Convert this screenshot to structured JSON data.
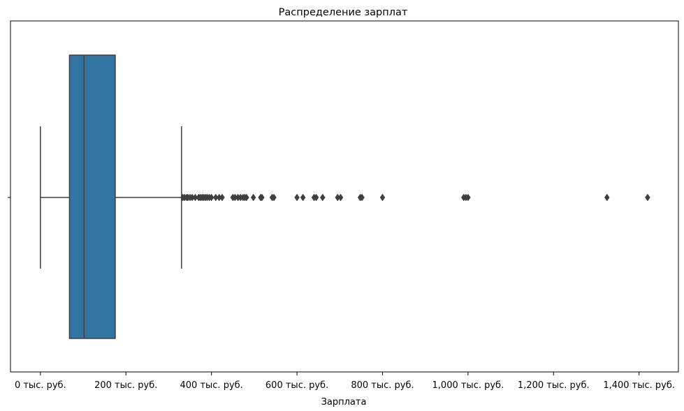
{
  "chart_data": {
    "type": "box",
    "orientation": "horizontal",
    "title": "Распределение зарплат",
    "xlabel": "Зарплата",
    "ylabel": "",
    "xlim": [
      -70,
      1492
    ],
    "xticks": [
      0,
      200,
      400,
      600,
      800,
      1000,
      1200,
      1400
    ],
    "xtick_labels": [
      "0 тыс. руб.",
      "200 тыс. руб.",
      "400 тыс. руб.",
      "600 тыс. руб.",
      "800 тыс. руб.",
      "1,000 тыс. руб.",
      "1,200 тыс. руб.",
      "1,400 тыс. руб."
    ],
    "units": "тыс. руб.",
    "box": {
      "whisker_low": 0,
      "q1": 68,
      "median": 102,
      "q3": 175,
      "whisker_high": 330
    },
    "outliers": [
      333,
      337,
      342,
      345,
      350,
      355,
      362,
      370,
      374,
      378,
      382,
      386,
      390,
      395,
      400,
      410,
      418,
      425,
      450,
      455,
      462,
      468,
      474,
      478,
      482,
      498,
      515,
      518,
      542,
      546,
      600,
      614,
      640,
      645,
      660,
      695,
      702,
      748,
      752,
      800,
      990,
      995,
      1000,
      1325,
      1420
    ],
    "grid": false,
    "legend": "none",
    "colors": {
      "box_fill": "#3274a1",
      "lines": "#3f3f3f",
      "frame": "#000000"
    }
  }
}
